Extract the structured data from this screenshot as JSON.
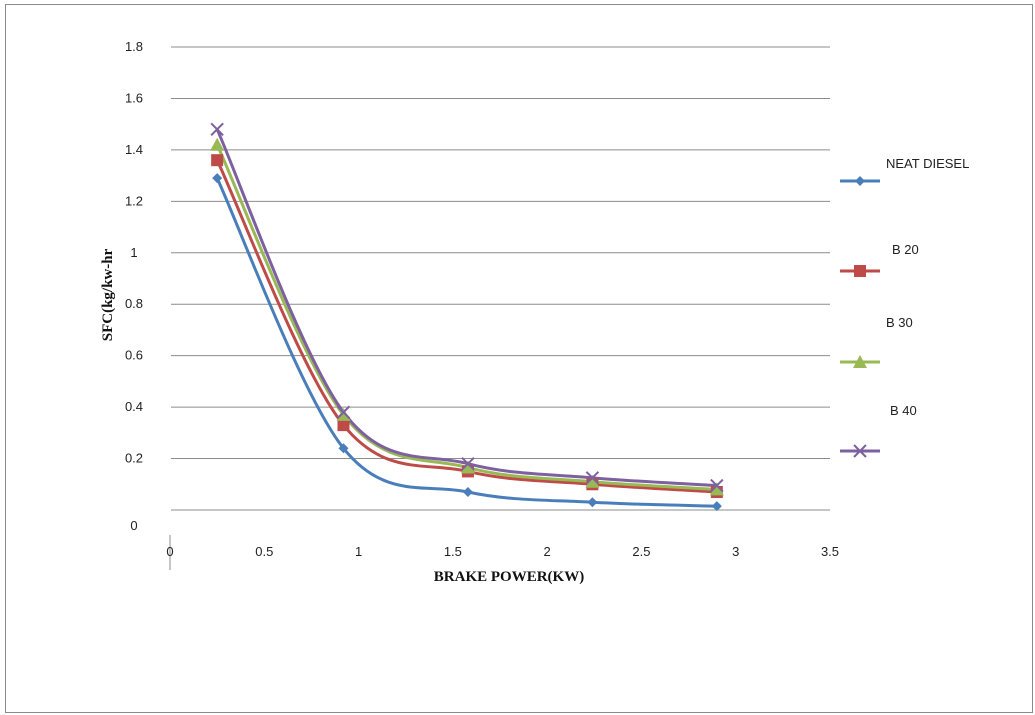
{
  "chart_data": {
    "type": "line",
    "xlabel": "BRAKE POWER(KW)",
    "ylabel": "SFC(kg/kw-hr",
    "xlim": [
      0,
      3.5
    ],
    "x_ticks": [
      0,
      0.5,
      1,
      1.5,
      2,
      2.5,
      3,
      3.5
    ],
    "x_tick_labels": [
      "0",
      "0.5",
      "1",
      "1.5",
      "2",
      "2.5",
      "3",
      "3.5"
    ],
    "y_ticks": [
      0,
      0.2,
      0.4,
      0.6,
      0.8,
      1,
      1.2,
      1.4,
      1.6,
      1.8
    ],
    "y_tick_labels": [
      "0",
      "0.2",
      "0.4",
      "0.6",
      "0.8",
      "1",
      "1.2",
      "1.4",
      "1.6",
      "1.8"
    ],
    "grid": "horizontal",
    "legend_position": "right",
    "x": [
      0.25,
      0.92,
      1.58,
      2.24,
      2.9
    ],
    "series": [
      {
        "name": "NEAT DIESEL",
        "values": [
          1.29,
          0.24,
          0.07,
          0.03,
          0.015
        ],
        "color": "#4a7ebb",
        "marker": "diamond"
      },
      {
        "name": "B 20",
        "values": [
          1.36,
          0.33,
          0.15,
          0.1,
          0.07
        ],
        "color": "#be4b48",
        "marker": "square"
      },
      {
        "name": "B 30",
        "values": [
          1.42,
          0.37,
          0.165,
          0.11,
          0.08
        ],
        "color": "#98b954",
        "marker": "triangle"
      },
      {
        "name": "B 40",
        "values": [
          1.48,
          0.38,
          0.18,
          0.125,
          0.095
        ],
        "color": "#7d60a0",
        "marker": "x"
      }
    ]
  }
}
